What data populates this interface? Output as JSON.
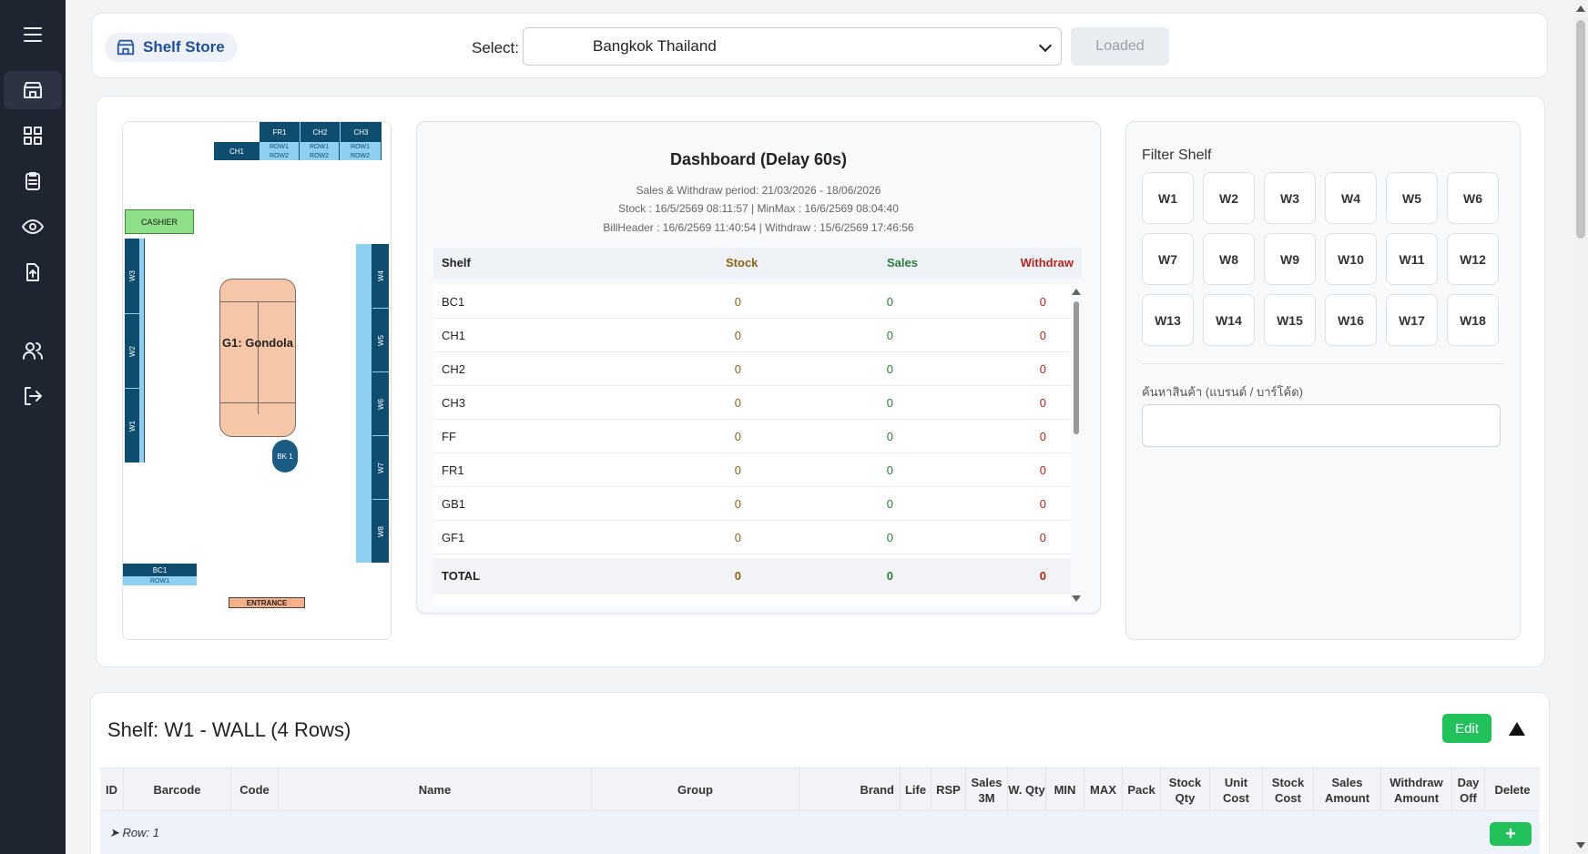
{
  "header": {
    "brand": "Shelf Store",
    "select_label": "Select:",
    "selected_store": "Bangkok Thailand",
    "loaded_label": "Loaded"
  },
  "sidebar": {
    "items": [
      {
        "icon": "menu-icon"
      },
      {
        "icon": "store-icon"
      },
      {
        "icon": "grid-icon"
      },
      {
        "icon": "clipboard-icon"
      },
      {
        "icon": "eye-icon"
      },
      {
        "icon": "file-upload-icon"
      },
      {
        "icon": "users-icon"
      },
      {
        "icon": "logout-icon"
      }
    ]
  },
  "map": {
    "fr1": "FR1",
    "ch2": "CH2",
    "ch3": "CH3",
    "ch1": "CH1",
    "row1": "ROW1",
    "row2": "ROW2",
    "cashier": "CASHIER",
    "w1": "W1",
    "w2": "W2",
    "w3": "W3",
    "w4": "W4",
    "w5": "W5",
    "w6": "W6",
    "w7": "W7",
    "w8": "W8",
    "gondola": "G1: Gondola",
    "bk": "BK 1",
    "bc1": "BC1",
    "entrance": "ENTRANCE"
  },
  "dashboard": {
    "title": "Dashboard (Delay 60s)",
    "period": "Sales & Withdraw period: 21/03/2026 - 18/06/2026",
    "stock_line": "Stock : 16/5/2569 08:11:57 | MinMax : 16/6/2569 08:04:40",
    "bill_line": "BillHeader : 16/6/2569 11:40:54 | Withdraw : 15/6/2569 17:46:56",
    "columns": {
      "shelf": "Shelf",
      "stock": "Stock",
      "sales": "Sales",
      "withdraw": "Withdraw"
    },
    "rows": [
      {
        "shelf": "BC1",
        "stock": "0",
        "sales": "0",
        "withdraw": "0"
      },
      {
        "shelf": "CH1",
        "stock": "0",
        "sales": "0",
        "withdraw": "0"
      },
      {
        "shelf": "CH2",
        "stock": "0",
        "sales": "0",
        "withdraw": "0"
      },
      {
        "shelf": "CH3",
        "stock": "0",
        "sales": "0",
        "withdraw": "0"
      },
      {
        "shelf": "FF",
        "stock": "0",
        "sales": "0",
        "withdraw": "0"
      },
      {
        "shelf": "FR1",
        "stock": "0",
        "sales": "0",
        "withdraw": "0"
      },
      {
        "shelf": "GB1",
        "stock": "0",
        "sales": "0",
        "withdraw": "0"
      },
      {
        "shelf": "GF1",
        "stock": "0",
        "sales": "0",
        "withdraw": "0"
      }
    ],
    "total": {
      "shelf": "TOTAL",
      "stock": "0",
      "sales": "0",
      "withdraw": "0"
    }
  },
  "filter": {
    "title": "Filter Shelf",
    "buttons": [
      "W1",
      "W2",
      "W3",
      "W4",
      "W5",
      "W6",
      "W7",
      "W8",
      "W9",
      "W10",
      "W11",
      "W12",
      "W13",
      "W14",
      "W15",
      "W16",
      "W17",
      "W18"
    ],
    "search_label": "ค้นหาสินค้า (แบรนด์ / บาร์โค้ด)",
    "search_value": ""
  },
  "shelf": {
    "title": "Shelf: W1 - WALL (4 Rows)",
    "edit_label": "Edit",
    "columns": [
      "ID",
      "Barcode",
      "Code",
      "Name",
      "Group",
      "Brand",
      "Life",
      "RSP",
      "Sales 3M",
      "W. Qty",
      "MIN",
      "MAX",
      "Pack",
      "Stock Qty",
      "Unit Cost",
      "Stock Cost",
      "Sales Amount",
      "Withdraw Amount",
      "Day Off",
      "Delete"
    ],
    "row_label": "➤ Row: 1",
    "add_label": "+"
  },
  "colors": {
    "sidebar_bg": "#1e2430",
    "brand_blue": "#1d4f9e",
    "shelf_dark": "#0e4d6e",
    "shelf_light": "#8fd0f0",
    "green": "#21c25a",
    "stock_color": "#8a6417",
    "sales_color": "#2a7d3a",
    "withdraw_color": "#b3261e"
  }
}
